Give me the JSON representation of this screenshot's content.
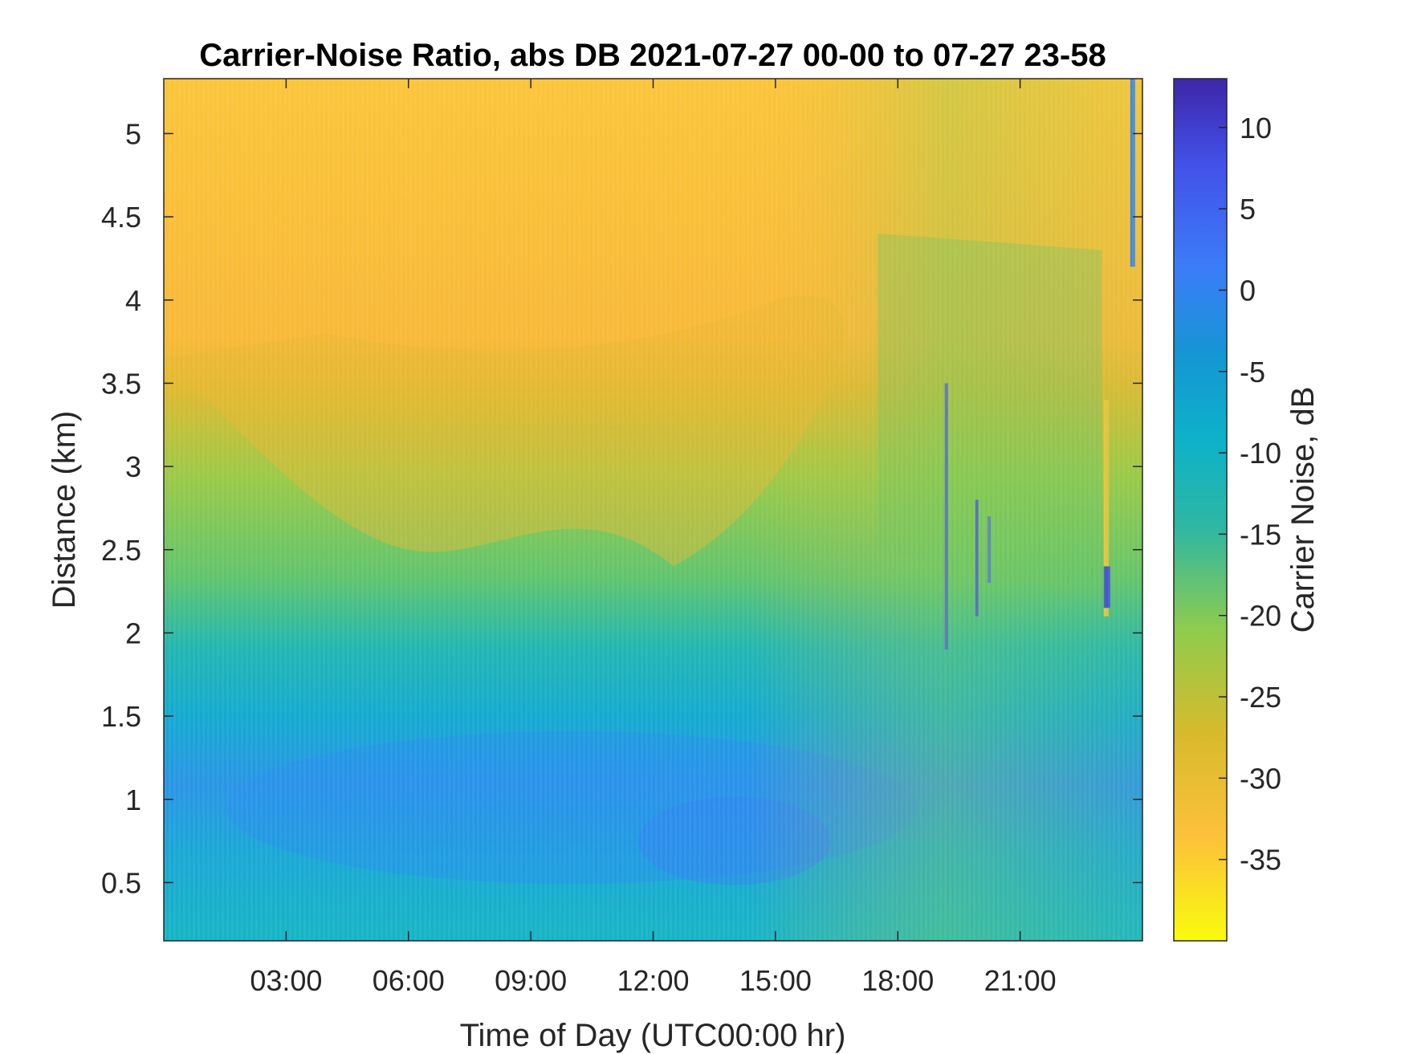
{
  "chart_data": {
    "type": "heatmap",
    "title": "Carrier-Noise Ratio, abs DB 2021-07-27 00-00 to 07-27 23-58",
    "xlabel": "Time of Day (UTC00:00 hr)",
    "ylabel": "Distance (km)",
    "colorbar_label": "Carrier Noise, dB",
    "x_tick_labels": [
      "03:00",
      "06:00",
      "09:00",
      "12:00",
      "15:00",
      "18:00",
      "21:00"
    ],
    "x_ticks_hours": [
      3,
      6,
      9,
      12,
      15,
      18,
      21
    ],
    "xlim_hours": [
      0,
      24
    ],
    "y_tick_labels": [
      "0.5",
      "1",
      "1.5",
      "2",
      "2.5",
      "3",
      "3.5",
      "4",
      "4.5",
      "5"
    ],
    "y_ticks": [
      0.5,
      1,
      1.5,
      2,
      2.5,
      3,
      3.5,
      4,
      4.5,
      5
    ],
    "ylim": [
      0.15,
      5.33
    ],
    "colorbar_tick_labels": [
      "10",
      "5",
      "0",
      "-5",
      "-10",
      "-15",
      "-20",
      "-25",
      "-30",
      "-35"
    ],
    "colorbar_ticks": [
      10,
      5,
      0,
      -5,
      -10,
      -15,
      -20,
      -25,
      -30,
      -35
    ],
    "clim": [
      -40,
      13
    ],
    "colormap": "parula-reversed",
    "approx_layers": [
      {
        "distance_km": [
          0.15,
          0.6
        ],
        "value_db": -11
      },
      {
        "distance_km": [
          0.6,
          1.2
        ],
        "value_db": -6
      },
      {
        "distance_km": [
          1.2,
          2.0
        ],
        "value_db": -10
      },
      {
        "distance_km": [
          2.0,
          3.2
        ],
        "value_db": -20
      },
      {
        "distance_km": [
          3.2,
          3.8
        ],
        "value_db": -28
      },
      {
        "distance_km": [
          3.8,
          5.33
        ],
        "value_db": -33
      }
    ]
  }
}
